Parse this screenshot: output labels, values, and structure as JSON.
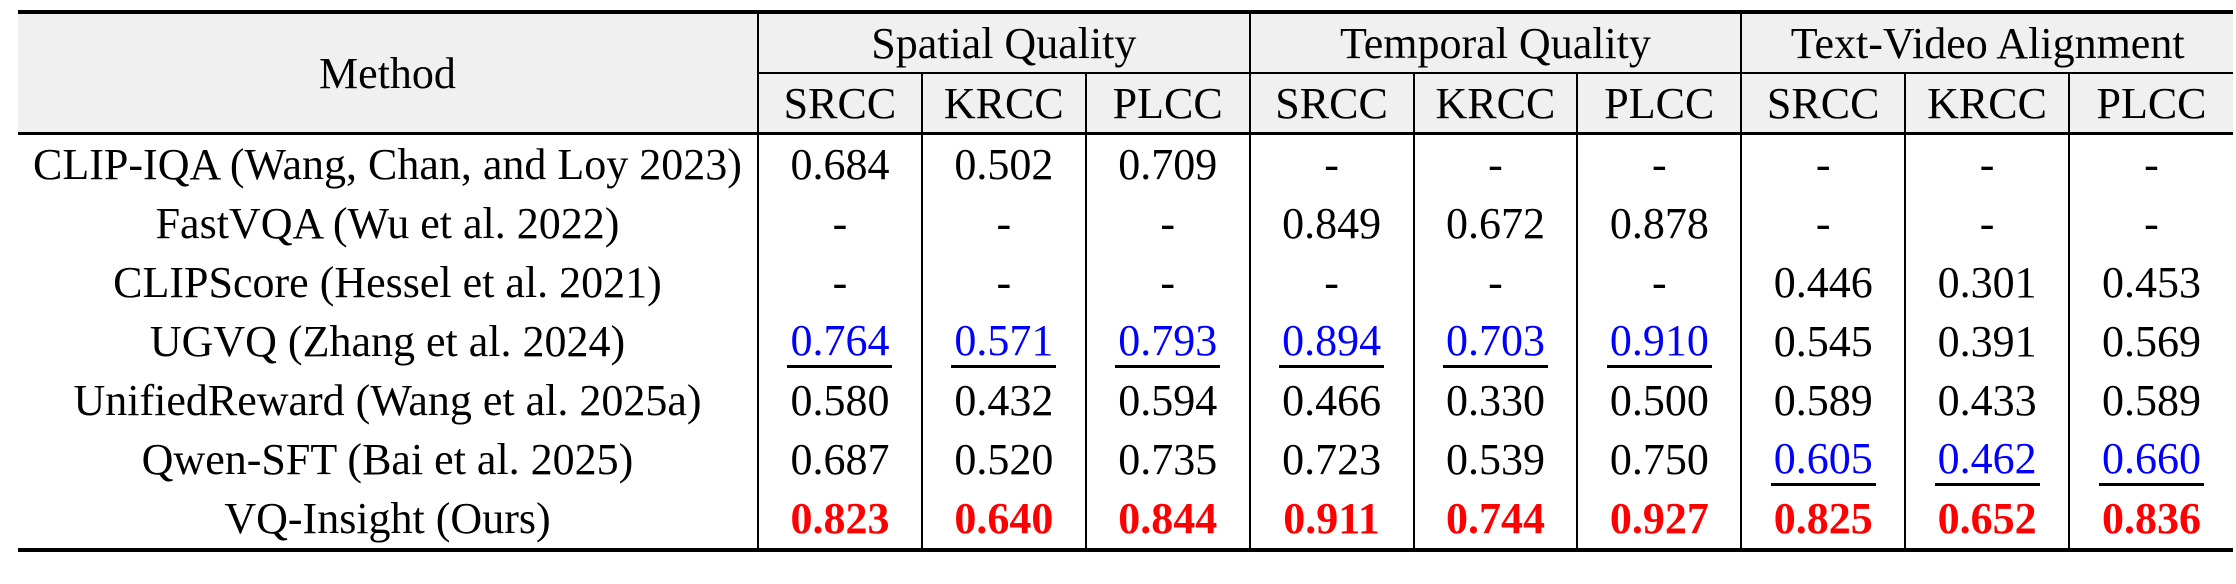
{
  "table": {
    "method_header": "Method",
    "col_groups": [
      {
        "label": "Spatial Quality",
        "metrics": [
          "SRCC",
          "KRCC",
          "PLCC"
        ]
      },
      {
        "label": "Temporal Quality",
        "metrics": [
          "SRCC",
          "KRCC",
          "PLCC"
        ]
      },
      {
        "label": "Text-Video Alignment",
        "metrics": [
          "SRCC",
          "KRCC",
          "PLCC"
        ]
      }
    ],
    "rows": [
      {
        "method": "CLIP-IQA (Wang, Chan, and Loy 2023)",
        "values": [
          "0.684",
          "0.502",
          "0.709",
          "-",
          "-",
          "-",
          "-",
          "-",
          "-"
        ],
        "styles": [
          "normal",
          "normal",
          "normal",
          "normal",
          "normal",
          "normal",
          "normal",
          "normal",
          "normal"
        ]
      },
      {
        "method": "FastVQA (Wu et al. 2022)",
        "values": [
          "-",
          "-",
          "-",
          "0.849",
          "0.672",
          "0.878",
          "-",
          "-",
          "-"
        ],
        "styles": [
          "normal",
          "normal",
          "normal",
          "normal",
          "normal",
          "normal",
          "normal",
          "normal",
          "normal"
        ]
      },
      {
        "method": "CLIPScore (Hessel et al. 2021)",
        "values": [
          "-",
          "-",
          "-",
          "-",
          "-",
          "-",
          "0.446",
          "0.301",
          "0.453"
        ],
        "styles": [
          "normal",
          "normal",
          "normal",
          "normal",
          "normal",
          "normal",
          "normal",
          "normal",
          "normal"
        ]
      },
      {
        "method": "UGVQ (Zhang et al. 2024)",
        "values": [
          "0.764",
          "0.571",
          "0.793",
          "0.894",
          "0.703",
          "0.910",
          "0.545",
          "0.391",
          "0.569"
        ],
        "styles": [
          "second-best",
          "second-best",
          "second-best",
          "second-best",
          "second-best",
          "second-best",
          "normal",
          "normal",
          "normal"
        ]
      },
      {
        "method": "UnifiedReward (Wang et al. 2025a)",
        "values": [
          "0.580",
          "0.432",
          "0.594",
          "0.466",
          "0.330",
          "0.500",
          "0.589",
          "0.433",
          "0.589"
        ],
        "styles": [
          "normal",
          "normal",
          "normal",
          "normal",
          "normal",
          "normal",
          "normal",
          "normal",
          "normal"
        ]
      },
      {
        "method": "Qwen-SFT (Bai et al. 2025)",
        "values": [
          "0.687",
          "0.520",
          "0.735",
          "0.723",
          "0.539",
          "0.750",
          "0.605",
          "0.462",
          "0.660"
        ],
        "styles": [
          "normal",
          "normal",
          "normal",
          "normal",
          "normal",
          "normal",
          "second-best",
          "second-best",
          "second-best"
        ]
      },
      {
        "method": "VQ-Insight (Ours)",
        "values": [
          "0.823",
          "0.640",
          "0.844",
          "0.911",
          "0.744",
          "0.927",
          "0.825",
          "0.652",
          "0.836"
        ],
        "styles": [
          "best",
          "best",
          "best",
          "best",
          "best",
          "best",
          "best",
          "best",
          "best"
        ]
      }
    ]
  },
  "colors": {
    "best_value": "#ff0000",
    "second_best_value": "#0000ff",
    "header_background": "#f0f0f0",
    "rule": "#000000"
  }
}
